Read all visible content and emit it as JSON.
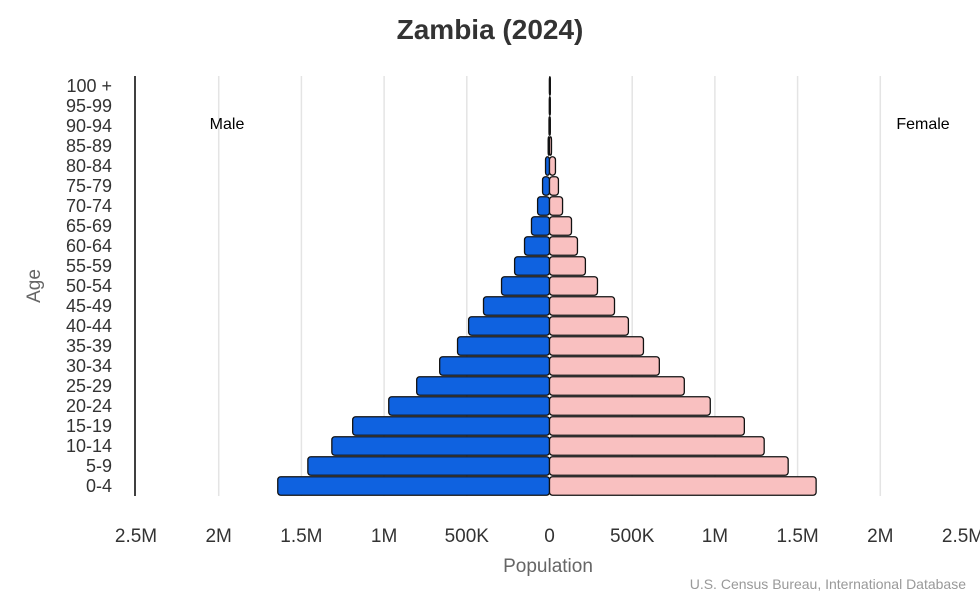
{
  "chart_data": {
    "type": "bar",
    "orientation": "horizontal-pyramid",
    "title": "Zambia (2024)",
    "xlabel": "Population",
    "ylabel": "Age",
    "xlim": [
      -2500000,
      2500000
    ],
    "x_ticks": [
      "2.5M",
      "2M",
      "1.5M",
      "1M",
      "500K",
      "0",
      "500K",
      "1M",
      "1.5M",
      "2M",
      "2.5M"
    ],
    "x_tick_values": [
      -2500000,
      -2000000,
      -1500000,
      -1000000,
      -500000,
      0,
      500000,
      1000000,
      1500000,
      2000000,
      2500000
    ],
    "grid": "vertical",
    "categories": [
      "0-4",
      "5-9",
      "10-14",
      "15-19",
      "20-24",
      "25-29",
      "30-34",
      "35-39",
      "40-44",
      "45-49",
      "50-54",
      "55-59",
      "60-64",
      "65-69",
      "70-74",
      "75-79",
      "80-84",
      "85-89",
      "90-94",
      "95-99",
      "100 +"
    ],
    "series": [
      {
        "name": "Male",
        "color": "#0f62e0",
        "values": [
          1643000,
          1461000,
          1316000,
          1190000,
          972000,
          803000,
          664000,
          556000,
          489000,
          399000,
          290000,
          211000,
          151000,
          109000,
          72000,
          42000,
          24000,
          8000,
          3000,
          1000,
          300
        ]
      },
      {
        "name": "Female",
        "color": "#f9c0c0",
        "values": [
          1612000,
          1443000,
          1298000,
          1178000,
          972000,
          815000,
          664000,
          568000,
          477000,
          393000,
          290000,
          217000,
          169000,
          133000,
          79000,
          54000,
          36000,
          12000,
          5000,
          2000,
          500
        ]
      }
    ],
    "source": "U.S. Census Bureau, International Database"
  }
}
